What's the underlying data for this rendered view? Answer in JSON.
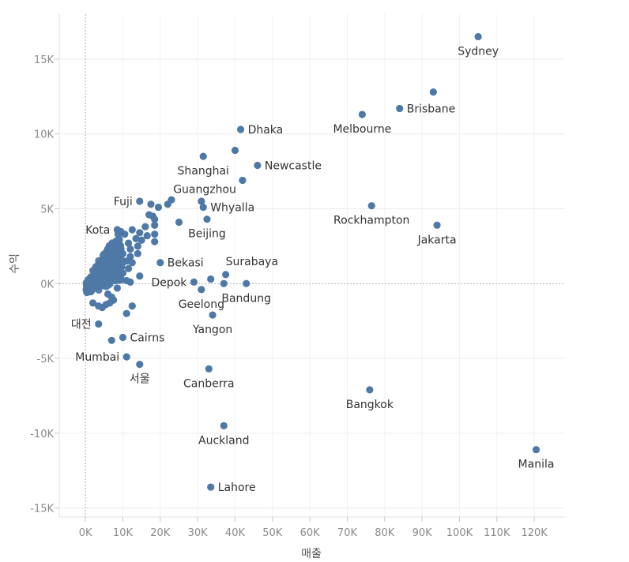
{
  "chart_data": {
    "type": "scatter",
    "title": "",
    "xlabel": "매출",
    "ylabel": "수익",
    "xlim": [
      -7000,
      128000
    ],
    "ylim": [
      -15600,
      18000
    ],
    "x_ticks": [
      {
        "value": 0,
        "label": "0K"
      },
      {
        "value": 10000,
        "label": "10K"
      },
      {
        "value": 20000,
        "label": "20K"
      },
      {
        "value": 30000,
        "label": "30K"
      },
      {
        "value": 40000,
        "label": "40K"
      },
      {
        "value": 50000,
        "label": "50K"
      },
      {
        "value": 60000,
        "label": "60K"
      },
      {
        "value": 70000,
        "label": "70K"
      },
      {
        "value": 80000,
        "label": "80K"
      },
      {
        "value": 90000,
        "label": "90K"
      },
      {
        "value": 100000,
        "label": "100K"
      },
      {
        "value": 110000,
        "label": "110K"
      },
      {
        "value": 120000,
        "label": "120K"
      }
    ],
    "y_ticks": [
      {
        "value": 15000,
        "label": "15K"
      },
      {
        "value": 10000,
        "label": "10K"
      },
      {
        "value": 5000,
        "label": "5K"
      },
      {
        "value": 0,
        "label": "0K"
      },
      {
        "value": -5000,
        "label": "-5K"
      },
      {
        "value": -10000,
        "label": "-10K"
      },
      {
        "value": -15000,
        "label": "-15K"
      }
    ],
    "marker_color": "#4e79a7",
    "labeled_points": [
      {
        "name": "Sydney",
        "x": 105000,
        "y": 16500,
        "anchor": "below"
      },
      {
        "name": "Brisbane",
        "x": 84000,
        "y": 11700,
        "anchor": "right"
      },
      {
        "name": "Melbourne",
        "x": 74000,
        "y": 11300,
        "anchor": "below"
      },
      {
        "name": "Dhaka",
        "x": 41500,
        "y": 10300,
        "anchor": "right"
      },
      {
        "name": "Newcastle",
        "x": 46000,
        "y": 7900,
        "anchor": "right"
      },
      {
        "name": "Shanghai",
        "x": 31500,
        "y": 8500,
        "anchor": "below"
      },
      {
        "name": "Guangzhou",
        "x": 42000,
        "y": 6900,
        "anchor": "below-left"
      },
      {
        "name": "Whyalla",
        "x": 31500,
        "y": 5100,
        "anchor": "right"
      },
      {
        "name": "Fuji",
        "x": 14500,
        "y": 5500,
        "anchor": "left"
      },
      {
        "name": "Rockhampton",
        "x": 76500,
        "y": 5200,
        "anchor": "below"
      },
      {
        "name": "Jakarta",
        "x": 94000,
        "y": 3900,
        "anchor": "below"
      },
      {
        "name": "Beijing",
        "x": 32500,
        "y": 4300,
        "anchor": "below"
      },
      {
        "name": "Kota",
        "x": 8500,
        "y": 3600,
        "anchor": "left"
      },
      {
        "name": "Bekasi",
        "x": 20000,
        "y": 1400,
        "anchor": "right"
      },
      {
        "name": "Surabaya",
        "x": 37500,
        "y": 600,
        "anchor": "above-right"
      },
      {
        "name": "Depok",
        "x": 29000,
        "y": 100,
        "anchor": "left"
      },
      {
        "name": "Bandung",
        "x": 43000,
        "y": 0,
        "anchor": "below"
      },
      {
        "name": "Geelong",
        "x": 31000,
        "y": -400,
        "anchor": "below"
      },
      {
        "name": "Yangon",
        "x": 34000,
        "y": -2100,
        "anchor": "below"
      },
      {
        "name": "대전",
        "x": 3500,
        "y": -2700,
        "anchor": "left"
      },
      {
        "name": "Cairns",
        "x": 10000,
        "y": -3600,
        "anchor": "right"
      },
      {
        "name": "Mumbai",
        "x": 11000,
        "y": -4900,
        "anchor": "left"
      },
      {
        "name": "서울",
        "x": 14500,
        "y": -5400,
        "anchor": "below"
      },
      {
        "name": "Canberra",
        "x": 33000,
        "y": -5700,
        "anchor": "below"
      },
      {
        "name": "Bangkok",
        "x": 76000,
        "y": -7100,
        "anchor": "below"
      },
      {
        "name": "Auckland",
        "x": 37000,
        "y": -9500,
        "anchor": "below"
      },
      {
        "name": "Manila",
        "x": 120500,
        "y": -11100,
        "anchor": "below"
      },
      {
        "name": "Lahore",
        "x": 33500,
        "y": -13600,
        "anchor": "right"
      }
    ],
    "unlabeled_points": [
      {
        "x": 40000,
        "y": 8900
      },
      {
        "x": 93000,
        "y": 12800
      },
      {
        "x": 31000,
        "y": 5500
      },
      {
        "x": 23000,
        "y": 5600
      },
      {
        "x": 22000,
        "y": 5300
      },
      {
        "x": 19500,
        "y": 5100
      },
      {
        "x": 17500,
        "y": 5300
      },
      {
        "x": 17000,
        "y": 4600
      },
      {
        "x": 18000,
        "y": 4500
      },
      {
        "x": 18500,
        "y": 4300
      },
      {
        "x": 25000,
        "y": 4100
      },
      {
        "x": 18500,
        "y": 3900
      },
      {
        "x": 16000,
        "y": 3800
      },
      {
        "x": 12500,
        "y": 3600
      },
      {
        "x": 14500,
        "y": 3400
      },
      {
        "x": 10500,
        "y": 3300
      },
      {
        "x": 18500,
        "y": 3300
      },
      {
        "x": 16500,
        "y": 3200
      },
      {
        "x": 13500,
        "y": 3000
      },
      {
        "x": 15000,
        "y": 2900
      },
      {
        "x": 18500,
        "y": 2800
      },
      {
        "x": 11500,
        "y": 2700
      },
      {
        "x": 14000,
        "y": 2500
      },
      {
        "x": 12000,
        "y": 2300
      },
      {
        "x": 14000,
        "y": 2000
      },
      {
        "x": 10000,
        "y": 2000
      },
      {
        "x": 12000,
        "y": 1800
      },
      {
        "x": 11000,
        "y": 1500
      },
      {
        "x": 12500,
        "y": 1400
      },
      {
        "x": 10000,
        "y": 1400
      },
      {
        "x": 11500,
        "y": 1000
      },
      {
        "x": 10000,
        "y": 700
      },
      {
        "x": 14500,
        "y": 500
      },
      {
        "x": 11000,
        "y": 200
      },
      {
        "x": 12000,
        "y": 100
      },
      {
        "x": 33500,
        "y": 300
      },
      {
        "x": 37000,
        "y": 0
      },
      {
        "x": 8500,
        "y": 2800
      },
      {
        "x": 7500,
        "y": 2200
      },
      {
        "x": 9000,
        "y": 1000
      },
      {
        "x": 7000,
        "y": -900
      },
      {
        "x": 7500,
        "y": -1100
      },
      {
        "x": 6500,
        "y": -1300
      },
      {
        "x": 5500,
        "y": -1400
      },
      {
        "x": 4500,
        "y": -1600
      },
      {
        "x": 3500,
        "y": -1500
      },
      {
        "x": 2000,
        "y": -1300
      },
      {
        "x": 11000,
        "y": -2000
      },
      {
        "x": 12500,
        "y": -1500
      },
      {
        "x": 7000,
        "y": -3800
      },
      {
        "x": 8500,
        "y": -300
      },
      {
        "x": 9500,
        "y": 300
      },
      {
        "x": 6000,
        "y": -700
      }
    ]
  }
}
